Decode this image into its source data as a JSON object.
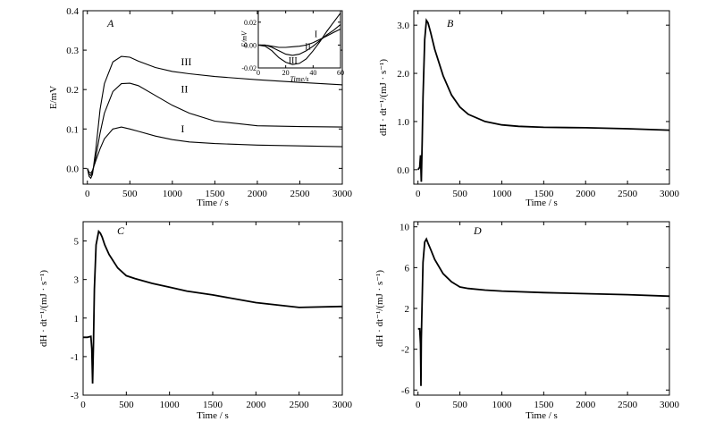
{
  "chart_data": [
    {
      "id": "A",
      "type": "line",
      "panel_label": "A",
      "xlabel": "Time / s",
      "ylabel": "E/mV",
      "xlim": [
        -50,
        3000
      ],
      "ylim": [
        -0.04,
        0.4
      ],
      "xticks": [
        0,
        500,
        1000,
        1500,
        2000,
        2500,
        3000
      ],
      "xtick_labels": [
        "0",
        "500",
        "1000",
        "1500",
        "2000",
        "2500",
        "3000"
      ],
      "yticks": [
        0.0,
        0.1,
        0.2,
        0.3,
        0.4
      ],
      "ytick_labels": [
        "0.0",
        "0.1",
        "0.2",
        "0.3",
        "0.4"
      ],
      "series": [
        {
          "name": "I",
          "x": [
            0,
            20,
            40,
            60,
            100,
            150,
            200,
            300,
            400,
            500,
            600,
            800,
            1000,
            1200,
            1500,
            2000,
            2500,
            3000
          ],
          "y": [
            0.0,
            -0.01,
            -0.012,
            -0.005,
            0.02,
            0.05,
            0.075,
            0.1,
            0.105,
            0.1,
            0.094,
            0.082,
            0.073,
            0.067,
            0.063,
            0.059,
            0.057,
            0.055
          ]
        },
        {
          "name": "II",
          "x": [
            0,
            20,
            40,
            60,
            100,
            150,
            200,
            300,
            400,
            500,
            600,
            800,
            1000,
            1200,
            1500,
            2000,
            2500,
            3000
          ],
          "y": [
            0.0,
            -0.015,
            -0.018,
            -0.01,
            0.03,
            0.09,
            0.14,
            0.195,
            0.215,
            0.216,
            0.21,
            0.185,
            0.16,
            0.14,
            0.12,
            0.108,
            0.106,
            0.105
          ]
        },
        {
          "name": "III",
          "x": [
            0,
            20,
            40,
            60,
            100,
            150,
            200,
            300,
            400,
            500,
            600,
            800,
            1000,
            1200,
            1500,
            2000,
            2500,
            3000
          ],
          "y": [
            0.0,
            -0.02,
            -0.025,
            -0.015,
            0.05,
            0.15,
            0.215,
            0.27,
            0.284,
            0.282,
            0.272,
            0.256,
            0.246,
            0.24,
            0.233,
            0.225,
            0.218,
            0.212
          ]
        }
      ],
      "curve_labels": [
        {
          "text": "III",
          "x": 1100,
          "y": 0.262
        },
        {
          "text": "II",
          "x": 1100,
          "y": 0.192
        },
        {
          "text": "I",
          "x": 1100,
          "y": 0.092
        }
      ],
      "inset": {
        "xlabel": "Time/s",
        "ylabel": "E/mV",
        "xlim": [
          0,
          60
        ],
        "ylim": [
          -0.02,
          0.03
        ],
        "xticks": [
          0,
          20,
          40,
          60
        ],
        "xtick_labels": [
          "0",
          "20",
          "40",
          "60"
        ],
        "yticks": [
          -0.02,
          0.0,
          0.02
        ],
        "ytick_labels": [
          "-0.02",
          "0.00",
          "0.02"
        ],
        "series": [
          {
            "name": "I",
            "x": [
              0,
              5,
              10,
              15,
              20,
              25,
              30,
              35,
              40,
              45,
              50,
              55,
              60
            ],
            "y": [
              0.0,
              0.0,
              -0.001,
              -0.002,
              -0.002,
              -0.0015,
              -0.001,
              0.0,
              0.002,
              0.005,
              0.008,
              0.011,
              0.014
            ]
          },
          {
            "name": "II",
            "x": [
              0,
              5,
              10,
              15,
              20,
              25,
              30,
              35,
              40,
              45,
              50,
              55,
              60
            ],
            "y": [
              0.0,
              0.0,
              -0.002,
              -0.005,
              -0.008,
              -0.009,
              -0.008,
              -0.005,
              -0.001,
              0.004,
              0.009,
              0.013,
              0.018
            ]
          },
          {
            "name": "III",
            "x": [
              0,
              5,
              10,
              15,
              20,
              25,
              30,
              35,
              40,
              45,
              50,
              55,
              60
            ],
            "y": [
              0.0,
              -0.001,
              -0.005,
              -0.011,
              -0.015,
              -0.017,
              -0.016,
              -0.012,
              -0.005,
              0.003,
              0.012,
              0.02,
              0.028
            ]
          }
        ],
        "curve_labels": [
          {
            "text": "I",
            "x": 41,
            "y": 0.007
          },
          {
            "text": "II",
            "x": 34,
            "y": -0.004
          },
          {
            "text": "III",
            "x": 22,
            "y": -0.016
          }
        ]
      }
    },
    {
      "id": "B",
      "type": "line",
      "panel_label": "B",
      "xlabel": "Time / s",
      "ylabel": "dH · dt⁻¹/(mJ · s⁻¹)",
      "xlim": [
        -50,
        3000
      ],
      "ylim": [
        -0.3,
        3.3
      ],
      "xticks": [
        0,
        500,
        1000,
        1500,
        2000,
        2500,
        3000
      ],
      "xtick_labels": [
        "0",
        "500",
        "1000",
        "1500",
        "2000",
        "2500",
        "3000"
      ],
      "yticks": [
        0.0,
        1.0,
        2.0,
        3.0
      ],
      "ytick_labels": [
        "0.0",
        "1.0",
        "2.0",
        "3.0"
      ],
      "series": [
        {
          "name": "",
          "x": [
            0,
            20,
            30,
            40,
            50,
            60,
            80,
            100,
            120,
            150,
            200,
            300,
            400,
            500,
            600,
            800,
            1000,
            1200,
            1500,
            2000,
            2500,
            3000
          ],
          "y": [
            0.0,
            0.05,
            0.3,
            -0.25,
            0.6,
            1.5,
            2.7,
            3.1,
            3.05,
            2.85,
            2.5,
            1.95,
            1.55,
            1.3,
            1.15,
            1.0,
            0.93,
            0.9,
            0.88,
            0.87,
            0.85,
            0.82
          ]
        }
      ]
    },
    {
      "id": "C",
      "type": "line",
      "panel_label": "C",
      "xlabel": "Time / s",
      "ylabel": "dH · dt⁻¹/(mJ · s⁻¹)",
      "xlim": [
        0,
        3000
      ],
      "ylim": [
        -3,
        6
      ],
      "xticks": [
        0,
        500,
        1000,
        1500,
        2000,
        2500,
        3000
      ],
      "xtick_labels": [
        "0",
        "500",
        "1000",
        "1500",
        "2000",
        "2500",
        "3000"
      ],
      "yticks": [
        -3,
        -1,
        1,
        3,
        5
      ],
      "ytick_labels": [
        "-3",
        "-1",
        "1",
        "3",
        "5"
      ],
      "series": [
        {
          "name": "",
          "x": [
            0,
            50,
            90,
            100,
            110,
            120,
            130,
            150,
            180,
            200,
            220,
            250,
            300,
            400,
            500,
            600,
            800,
            1000,
            1200,
            1500,
            2000,
            2500,
            3000
          ],
          "y": [
            0.0,
            0.0,
            0.05,
            -0.6,
            -2.4,
            -0.3,
            2.5,
            4.8,
            5.5,
            5.4,
            5.2,
            4.8,
            4.3,
            3.6,
            3.2,
            3.05,
            2.8,
            2.6,
            2.4,
            2.2,
            1.8,
            1.55,
            1.6
          ]
        }
      ]
    },
    {
      "id": "D",
      "type": "line",
      "panel_label": "D",
      "xlabel": "Time / s",
      "ylabel": "dH · dt⁻¹/(mJ · s⁻¹)",
      "xlim": [
        -50,
        3000
      ],
      "ylim": [
        -6.5,
        10.5
      ],
      "xticks": [
        0,
        500,
        1000,
        1500,
        2000,
        2500,
        3000
      ],
      "xtick_labels": [
        "0",
        "500",
        "1000",
        "1500",
        "2000",
        "2500",
        "3000"
      ],
      "yticks": [
        -6,
        -2,
        2,
        6,
        10
      ],
      "ytick_labels": [
        "-6",
        "-2",
        "2",
        "6",
        "10"
      ],
      "series": [
        {
          "name": "",
          "x": [
            0,
            20,
            30,
            35,
            40,
            50,
            60,
            80,
            100,
            120,
            150,
            200,
            300,
            400,
            500,
            600,
            800,
            1000,
            1500,
            2000,
            2500,
            3000
          ],
          "y": [
            0.0,
            0.0,
            -1.5,
            -5.6,
            -1.0,
            3.0,
            6.5,
            8.5,
            8.8,
            8.4,
            7.8,
            6.8,
            5.4,
            4.6,
            4.1,
            3.95,
            3.8,
            3.7,
            3.55,
            3.45,
            3.35,
            3.2
          ]
        }
      ]
    }
  ]
}
